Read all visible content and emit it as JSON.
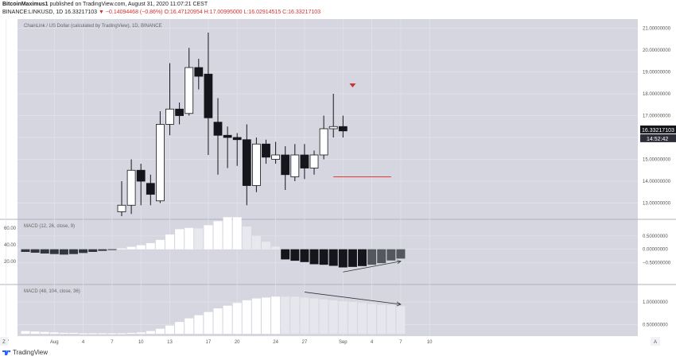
{
  "header": {
    "author": "BitcoinMaximus1",
    "published": "published on TradingView.com, August 31, 2020 11:07:21 CEST",
    "symbol_line": "BINANCE:LINKUSD, 1D 16.33217103",
    "change": "▼ −0.14094468 (−0.86%)",
    "ohlc": "O:16.47120954 H:17.00995000 L:16.02914515 C:16.33217103"
  },
  "footer": {
    "brand": "TradingView"
  },
  "colors": {
    "background": "#d5d6e0",
    "grid": "#e2e3eb",
    "up": "#ffffff",
    "down": "#15161c",
    "hline": "#e53935",
    "marker": "#d32f2f",
    "arrow": "#333333",
    "price_tag": "#15161c"
  },
  "chart_data": [
    {
      "type": "candlestick",
      "title": "ChainLink / US Dollar (calculated by TradingView), 1D, BINANCE",
      "ylim": [
        12.4,
        21.2
      ],
      "y_ticks": [
        "13.00000000",
        "14.00000000",
        "15.00000000",
        "16.00000000",
        "17.00000000",
        "18.00000000",
        "19.00000000",
        "20.00000000",
        "21.00000000"
      ],
      "y_tick_values": [
        13,
        14,
        15,
        16,
        17,
        18,
        19,
        20,
        21
      ],
      "price_tag": "16.33217103",
      "countdown": "14:52:42",
      "price_tag_value": 16.33,
      "horizontal_line": {
        "value": 14.2,
        "from_index": 32,
        "to_index": 38
      },
      "marker": {
        "type": "down-triangle",
        "index": 34,
        "value": 18.4
      },
      "candles": [
        {
          "o": 12.6,
          "h": 14.0,
          "l": 12.4,
          "c": 12.9
        },
        {
          "o": 12.9,
          "h": 15.0,
          "l": 12.5,
          "c": 14.5
        },
        {
          "o": 14.5,
          "h": 14.8,
          "l": 12.9,
          "c": 14.0
        },
        {
          "o": 13.9,
          "h": 14.3,
          "l": 12.9,
          "c": 13.4
        },
        {
          "o": 13.1,
          "h": 17.2,
          "l": 13.0,
          "c": 16.6
        },
        {
          "o": 16.6,
          "h": 19.4,
          "l": 16.1,
          "c": 17.3
        },
        {
          "o": 17.3,
          "h": 17.6,
          "l": 16.6,
          "c": 17.0
        },
        {
          "o": 17.1,
          "h": 20.1,
          "l": 17.0,
          "c": 19.2
        },
        {
          "o": 19.2,
          "h": 19.6,
          "l": 18.2,
          "c": 18.8
        },
        {
          "o": 18.9,
          "h": 20.8,
          "l": 15.2,
          "c": 16.9
        },
        {
          "o": 16.7,
          "h": 17.8,
          "l": 14.3,
          "c": 16.1
        },
        {
          "o": 16.1,
          "h": 16.5,
          "l": 14.6,
          "c": 16.0
        },
        {
          "o": 16.0,
          "h": 16.2,
          "l": 14.7,
          "c": 15.9
        },
        {
          "o": 15.9,
          "h": 16.6,
          "l": 12.9,
          "c": 13.8
        },
        {
          "o": 13.8,
          "h": 16.0,
          "l": 13.5,
          "c": 15.7
        },
        {
          "o": 15.7,
          "h": 15.9,
          "l": 14.8,
          "c": 15.1
        },
        {
          "o": 15.0,
          "h": 15.8,
          "l": 14.8,
          "c": 15.2
        },
        {
          "o": 15.2,
          "h": 15.6,
          "l": 13.6,
          "c": 14.3
        },
        {
          "o": 14.2,
          "h": 15.7,
          "l": 14.0,
          "c": 15.2
        },
        {
          "o": 15.2,
          "h": 15.7,
          "l": 14.1,
          "c": 14.6
        },
        {
          "o": 14.6,
          "h": 15.4,
          "l": 14.3,
          "c": 15.2
        },
        {
          "o": 15.2,
          "h": 17.0,
          "l": 15.0,
          "c": 16.4
        },
        {
          "o": 16.4,
          "h": 18.0,
          "l": 16.0,
          "c": 16.5
        },
        {
          "o": 16.5,
          "h": 17.0,
          "l": 16.0,
          "c": 16.3
        }
      ],
      "candle_index_start": 10
    },
    {
      "type": "histogram",
      "title": "MACD (12, 26, close, 9)",
      "ylim": [
        -1.2,
        1.0
      ],
      "y_ticks": [
        "0.50000000",
        "0.00000000",
        "−0.50000000"
      ],
      "y_tick_values": [
        0.5,
        0,
        -0.5
      ],
      "left_labels": [
        "60.00",
        "40.00",
        "20.00"
      ],
      "values": [
        -0.1,
        -0.13,
        -0.16,
        -0.18,
        -0.2,
        -0.18,
        -0.14,
        -0.1,
        -0.06,
        -0.02,
        0.03,
        0.09,
        0.15,
        0.23,
        0.35,
        0.55,
        0.75,
        0.8,
        0.78,
        0.9,
        1.05,
        1.2,
        1.2,
        0.85,
        0.5,
        0.28,
        0.1,
        -0.38,
        -0.43,
        -0.48,
        -0.56,
        -0.58,
        -0.62,
        -0.68,
        -0.66,
        -0.63,
        -0.58,
        -0.52,
        -0.42,
        -0.35
      ],
      "dark_indexes": [
        27,
        28,
        29,
        30,
        31,
        32,
        33,
        34,
        35
      ],
      "divergence_arrow": {
        "from": [
          33,
          -0.85
        ],
        "to": [
          39,
          -0.45
        ]
      }
    },
    {
      "type": "histogram",
      "title": "MACD (48, 104, close, 36)",
      "ylim": [
        0.3,
        1.3
      ],
      "y_ticks": [
        "1.00000000",
        "0.50000000"
      ],
      "y_tick_values": [
        1.0,
        0.5
      ],
      "values": [
        0.36,
        0.35,
        0.34,
        0.33,
        0.32,
        0.32,
        0.31,
        0.31,
        0.31,
        0.31,
        0.31,
        0.32,
        0.33,
        0.36,
        0.41,
        0.48,
        0.56,
        0.64,
        0.71,
        0.78,
        0.86,
        0.92,
        0.98,
        1.04,
        1.08,
        1.1,
        1.12,
        1.12,
        1.12,
        1.1,
        1.08,
        1.06,
        1.04,
        1.02,
        1.0,
        0.98,
        0.96,
        0.94,
        0.93,
        0.91
      ],
      "light_from_index": 27,
      "trend_arrow": {
        "from": [
          29,
          1.22
        ],
        "to": [
          39,
          0.95
        ]
      }
    }
  ],
  "x_axis": {
    "ticks": [
      {
        "label": "27",
        "index": -2
      },
      {
        "label": "Aug",
        "index": 3
      },
      {
        "label": "4",
        "index": 6
      },
      {
        "label": "7",
        "index": 9
      },
      {
        "label": "10",
        "index": 12
      },
      {
        "label": "13",
        "index": 15
      },
      {
        "label": "17",
        "index": 19
      },
      {
        "label": "20",
        "index": 22
      },
      {
        "label": "24",
        "index": 26
      },
      {
        "label": "27",
        "index": 29
      },
      {
        "label": "Sep",
        "index": 33
      },
      {
        "label": "4",
        "index": 36
      },
      {
        "label": "7",
        "index": 39
      },
      {
        "label": "10",
        "index": 42
      }
    ],
    "left_badge": "Z",
    "right_badge": "A"
  }
}
